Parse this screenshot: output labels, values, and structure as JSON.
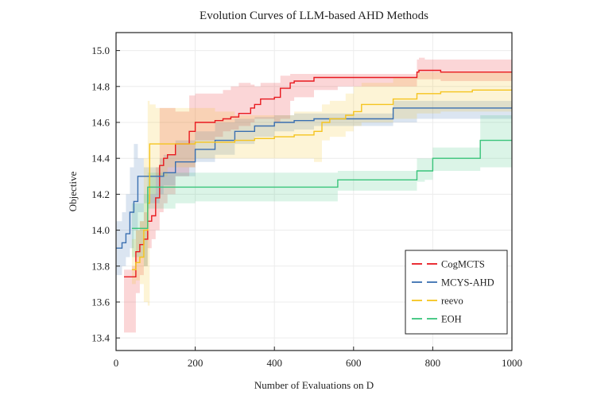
{
  "chart_data": {
    "type": "line",
    "title": "Evolution Curves of LLM-based AHD Methods",
    "xlabel": "Number of Evaluations on D",
    "ylabel": "Objective",
    "xlim": [
      0,
      1000
    ],
    "ylim": [
      13.33,
      15.1
    ],
    "xticks": [
      0,
      200,
      400,
      600,
      800,
      1000
    ],
    "yticks": [
      13.4,
      13.6,
      13.8,
      14.0,
      14.2,
      14.4,
      14.6,
      14.8,
      15.0
    ],
    "xtick_labels": [
      "0",
      "200",
      "400",
      "600",
      "800",
      "1000"
    ],
    "ytick_labels": [
      "13.4",
      "13.6",
      "13.8",
      "14.0",
      "14.2",
      "14.4",
      "14.6",
      "14.8",
      "15.0"
    ],
    "grid": true,
    "legend": "lower-right",
    "series": [
      {
        "name": "CogMCTS",
        "color": "#e8191f",
        "x": [
          20,
          40,
          50,
          60,
          70,
          80,
          90,
          100,
          110,
          120,
          130,
          150,
          170,
          185,
          200,
          250,
          270,
          290,
          310,
          330,
          340,
          350,
          365,
          400,
          415,
          440,
          450,
          500,
          520,
          560,
          600,
          660,
          700,
          760,
          765,
          780,
          820,
          1000
        ],
        "y": [
          13.74,
          13.74,
          13.88,
          13.92,
          13.95,
          14.05,
          14.08,
          14.18,
          14.36,
          14.4,
          14.42,
          14.48,
          14.48,
          14.55,
          14.6,
          14.61,
          14.62,
          14.63,
          14.65,
          14.65,
          14.68,
          14.7,
          14.73,
          14.74,
          14.79,
          14.82,
          14.83,
          14.85,
          14.85,
          14.85,
          14.85,
          14.85,
          14.85,
          14.88,
          14.89,
          14.89,
          14.88,
          14.88
        ],
        "band_low": [
          13.43,
          13.43,
          13.65,
          13.75,
          13.8,
          13.9,
          13.95,
          14.0,
          14.1,
          14.15,
          14.2,
          14.3,
          14.3,
          14.35,
          14.5,
          14.52,
          14.55,
          14.56,
          14.58,
          14.58,
          14.6,
          14.62,
          14.62,
          14.6,
          14.62,
          14.72,
          14.74,
          14.78,
          14.78,
          14.8,
          14.8,
          14.8,
          14.8,
          14.84,
          14.84,
          14.84,
          14.83,
          14.82
        ],
        "band_high": [
          13.78,
          13.8,
          14.0,
          14.05,
          14.1,
          14.2,
          14.2,
          14.35,
          14.68,
          14.68,
          14.68,
          14.66,
          14.66,
          14.75,
          14.76,
          14.76,
          14.78,
          14.8,
          14.82,
          14.82,
          14.81,
          14.8,
          14.82,
          14.82,
          14.86,
          14.87,
          14.87,
          14.87,
          14.87,
          14.87,
          14.87,
          14.87,
          14.87,
          14.95,
          14.96,
          14.95,
          14.95,
          14.94
        ]
      },
      {
        "name": "MCYS-AHD",
        "color": "#3a6fb0",
        "x": [
          0,
          15,
          25,
          35,
          45,
          55,
          70,
          90,
          110,
          120,
          150,
          200,
          250,
          300,
          350,
          400,
          450,
          500,
          550,
          600,
          650,
          700,
          760,
          900,
          1000
        ],
        "y": [
          13.9,
          13.93,
          13.98,
          14.1,
          14.16,
          14.3,
          14.3,
          14.3,
          14.3,
          14.32,
          14.38,
          14.45,
          14.5,
          14.55,
          14.58,
          14.6,
          14.61,
          14.62,
          14.62,
          14.62,
          14.62,
          14.68,
          14.68,
          14.68,
          14.68
        ],
        "band_low": [
          13.75,
          13.8,
          13.85,
          13.9,
          14.0,
          14.1,
          14.15,
          14.15,
          14.2,
          14.25,
          14.3,
          14.38,
          14.42,
          14.48,
          14.52,
          14.55,
          14.56,
          14.58,
          14.58,
          14.58,
          14.58,
          14.6,
          14.62,
          14.62,
          14.62
        ],
        "band_high": [
          14.05,
          14.1,
          14.2,
          14.35,
          14.48,
          14.4,
          14.35,
          14.35,
          14.4,
          14.42,
          14.5,
          14.55,
          14.6,
          14.62,
          14.63,
          14.64,
          14.65,
          14.65,
          14.65,
          14.65,
          14.65,
          14.72,
          14.72,
          14.72,
          14.72
        ]
      },
      {
        "name": "reevo",
        "color": "#f5c41e",
        "x": [
          40,
          50,
          60,
          70,
          80,
          85,
          100,
          130,
          160,
          200,
          250,
          300,
          350,
          400,
          450,
          500,
          520,
          540,
          580,
          600,
          620,
          700,
          760,
          820,
          900,
          1000
        ],
        "y": [
          13.78,
          13.82,
          13.85,
          14.0,
          14.15,
          14.48,
          14.48,
          14.48,
          14.48,
          14.49,
          14.49,
          14.5,
          14.51,
          14.52,
          14.53,
          14.55,
          14.6,
          14.62,
          14.64,
          14.66,
          14.7,
          14.73,
          14.76,
          14.77,
          14.78,
          14.78
        ],
        "band_low": [
          13.7,
          13.72,
          13.7,
          13.6,
          13.58,
          14.2,
          14.3,
          14.35,
          14.35,
          14.4,
          14.4,
          14.4,
          14.4,
          14.4,
          14.4,
          14.38,
          14.5,
          14.52,
          14.55,
          14.58,
          14.6,
          14.62,
          14.65,
          14.66,
          14.66,
          14.66
        ],
        "band_high": [
          13.95,
          14.0,
          14.05,
          14.4,
          14.72,
          14.7,
          14.68,
          14.68,
          14.68,
          14.68,
          14.66,
          14.64,
          14.64,
          14.64,
          14.66,
          14.66,
          14.7,
          14.72,
          14.76,
          14.8,
          14.82,
          14.85,
          14.88,
          14.88,
          14.88,
          14.88
        ]
      },
      {
        "name": "EOH",
        "color": "#39c47a",
        "x": [
          40,
          50,
          60,
          70,
          80,
          100,
          150,
          200,
          300,
          400,
          500,
          560,
          600,
          700,
          760,
          780,
          800,
          850,
          900,
          920,
          1000
        ],
        "y": [
          14.01,
          14.01,
          14.01,
          14.01,
          14.24,
          14.24,
          14.24,
          14.24,
          14.24,
          14.24,
          14.24,
          14.28,
          14.28,
          14.28,
          14.33,
          14.33,
          14.4,
          14.4,
          14.4,
          14.5,
          14.5
        ],
        "band_low": [
          13.85,
          13.85,
          13.85,
          13.8,
          14.12,
          14.12,
          14.15,
          14.16,
          14.16,
          14.16,
          14.16,
          14.22,
          14.22,
          14.22,
          14.27,
          14.28,
          14.33,
          14.33,
          14.33,
          14.35,
          14.35
        ],
        "band_high": [
          14.15,
          14.15,
          14.15,
          14.2,
          14.32,
          14.32,
          14.32,
          14.32,
          14.32,
          14.32,
          14.32,
          14.33,
          14.33,
          14.33,
          14.4,
          14.4,
          14.46,
          14.46,
          14.46,
          14.64,
          14.64
        ]
      }
    ]
  }
}
